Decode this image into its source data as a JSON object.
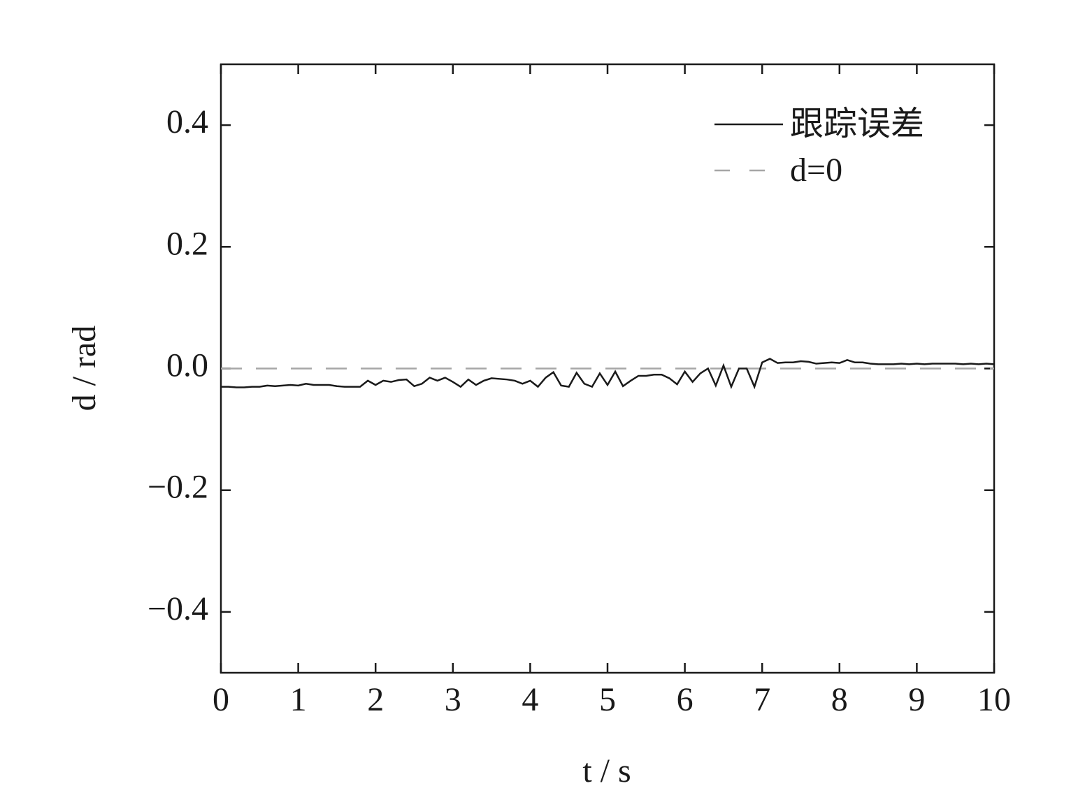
{
  "chart_data": {
    "type": "line",
    "xlabel": "t / s",
    "ylabel": "d / rad",
    "xlim": [
      0,
      10
    ],
    "ylim": [
      -0.5,
      0.5
    ],
    "xticks": [
      0,
      1,
      2,
      3,
      4,
      5,
      6,
      7,
      8,
      9,
      10
    ],
    "yticks": [
      {
        "value": -0.4,
        "label": "−0.4"
      },
      {
        "value": -0.2,
        "label": "−0.2"
      },
      {
        "value": 0,
        "label": "0.0"
      },
      0.2,
      0.4
    ],
    "legend": "upper right",
    "series": [
      {
        "name": "跟踪误差",
        "color": "#1a1a1a",
        "linestyle": "solid",
        "x": [
          0,
          0.1,
          0.2,
          0.3,
          0.4,
          0.5,
          0.6,
          0.7,
          0.8,
          0.9,
          1,
          1.1,
          1.2,
          1.3,
          1.4,
          1.5,
          1.6,
          1.7,
          1.8,
          1.9,
          2,
          2.1,
          2.2,
          2.3,
          2.4,
          2.5,
          2.6,
          2.7,
          2.8,
          2.9,
          3,
          3.1,
          3.2,
          3.3,
          3.4,
          3.5,
          3.6,
          3.7,
          3.8,
          3.9,
          4,
          4.1,
          4.2,
          4.3,
          4.4,
          4.5,
          4.6,
          4.7,
          4.8,
          4.9,
          5,
          5.1,
          5.2,
          5.3,
          5.4,
          5.5,
          5.6,
          5.7,
          5.8,
          5.9,
          6,
          6.1,
          6.2,
          6.3,
          6.4,
          6.5,
          6.6,
          6.7,
          6.8,
          6.9,
          7,
          7.1,
          7.2,
          7.3,
          7.4,
          7.5,
          7.6,
          7.7,
          7.8,
          7.9,
          8,
          8.1,
          8.2,
          8.3,
          8.4,
          8.5,
          8.6,
          8.7,
          8.8,
          8.9,
          9,
          9.1,
          9.2,
          9.3,
          9.4,
          9.5,
          9.6,
          9.7,
          9.8,
          9.9,
          10
        ],
        "values": [
          -0.03,
          -0.03,
          -0.031,
          -0.031,
          -0.03,
          -0.03,
          -0.028,
          -0.029,
          -0.028,
          -0.027,
          -0.028,
          -0.025,
          -0.027,
          -0.027,
          -0.027,
          -0.029,
          -0.03,
          -0.03,
          -0.03,
          -0.02,
          -0.027,
          -0.02,
          -0.022,
          -0.019,
          -0.018,
          -0.029,
          -0.025,
          -0.015,
          -0.02,
          -0.015,
          -0.022,
          -0.03,
          -0.018,
          -0.027,
          -0.02,
          -0.016,
          -0.017,
          -0.018,
          -0.02,
          -0.025,
          -0.02,
          -0.03,
          -0.015,
          -0.006,
          -0.028,
          -0.03,
          -0.007,
          -0.025,
          -0.03,
          -0.008,
          -0.027,
          -0.005,
          -0.029,
          -0.02,
          -0.012,
          -0.012,
          -0.01,
          -0.01,
          -0.016,
          -0.026,
          -0.005,
          -0.022,
          -0.008,
          0,
          -0.028,
          0.005,
          -0.03,
          0,
          0,
          -0.03,
          0.01,
          0.016,
          0.009,
          0.01,
          0.01,
          0.012,
          0.011,
          0.008,
          0.009,
          0.01,
          0.009,
          0.014,
          0.01,
          0.01,
          0.008,
          0.007,
          0.007,
          0.007,
          0.008,
          0.007,
          0.008,
          0.007,
          0.008,
          0.008,
          0.008,
          0.008,
          0.007,
          0.008,
          0.007,
          0.008,
          0.007
        ]
      },
      {
        "name": "d=0",
        "color": "#a6a6a6",
        "linestyle": "dashed",
        "x": [
          0,
          10
        ],
        "values": [
          0,
          0
        ]
      }
    ]
  }
}
